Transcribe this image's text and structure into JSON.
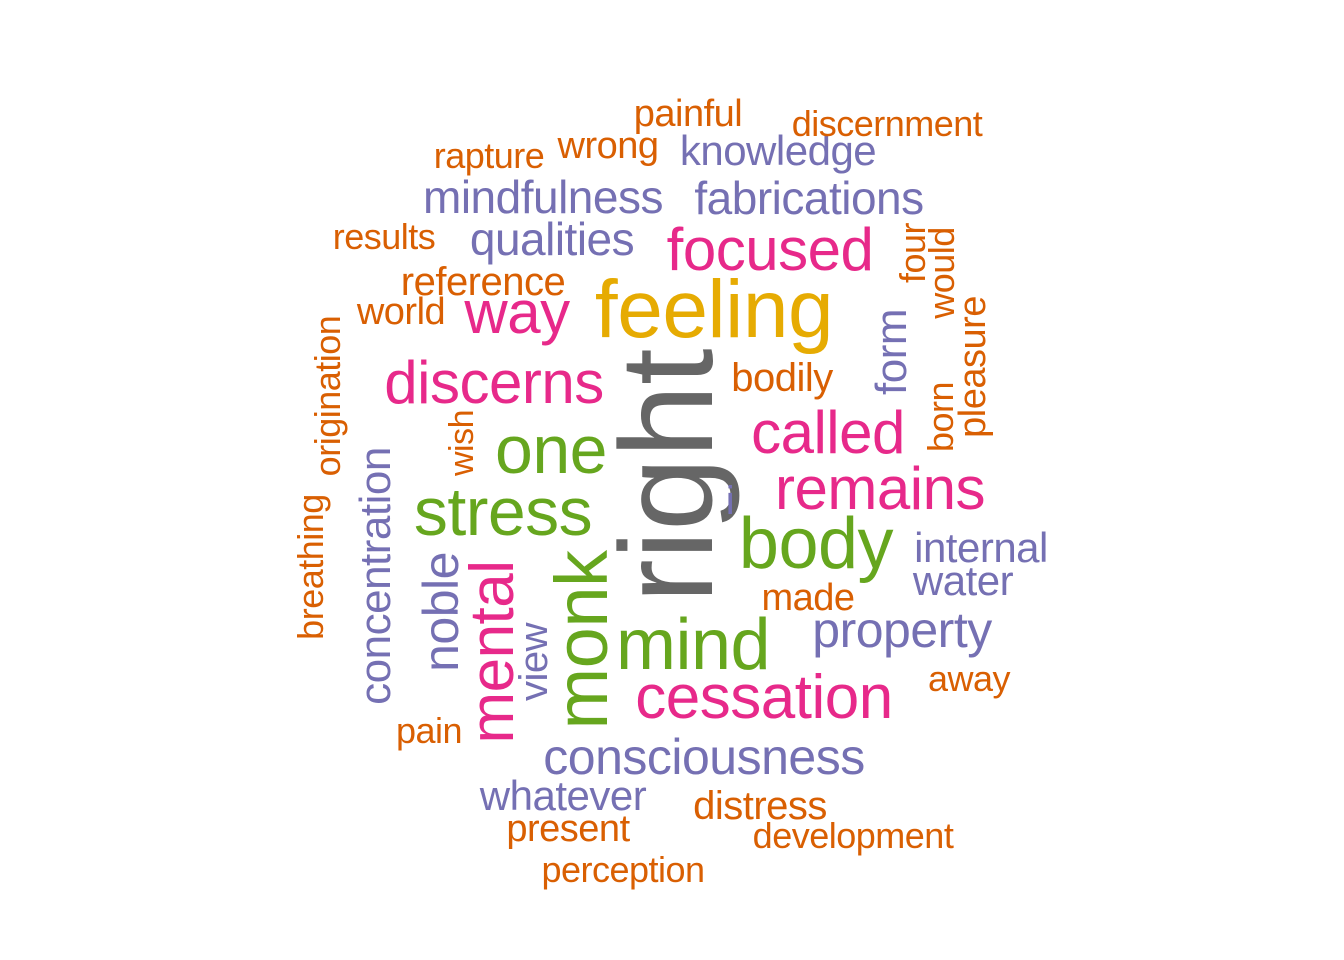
{
  "colors": {
    "orange": "#d95f02",
    "purple": "#7570b3",
    "pink": "#e7298a",
    "green": "#66a61e",
    "gold": "#e6ab02",
    "gray": "#666666"
  },
  "words": [
    {
      "text": "right",
      "color": "gray",
      "vertical": true
    },
    {
      "text": "feeling",
      "color": "gold",
      "vertical": false
    },
    {
      "text": "monk",
      "color": "green",
      "vertical": true
    },
    {
      "text": "mind",
      "color": "green",
      "vertical": false
    },
    {
      "text": "body",
      "color": "green",
      "vertical": false
    },
    {
      "text": "stress",
      "color": "green",
      "vertical": false
    },
    {
      "text": "one",
      "color": "green",
      "vertical": false
    },
    {
      "text": "mental",
      "color": "pink",
      "vertical": true
    },
    {
      "text": "cessation",
      "color": "pink",
      "vertical": false
    },
    {
      "text": "remains",
      "color": "pink",
      "vertical": false
    },
    {
      "text": "called",
      "color": "pink",
      "vertical": false
    },
    {
      "text": "discerns",
      "color": "pink",
      "vertical": false
    },
    {
      "text": "focused",
      "color": "pink",
      "vertical": false
    },
    {
      "text": "way",
      "color": "pink",
      "vertical": false
    },
    {
      "text": "consciousness",
      "color": "purple",
      "vertical": false
    },
    {
      "text": "property",
      "color": "purple",
      "vertical": false
    },
    {
      "text": "noble",
      "color": "purple",
      "vertical": true
    },
    {
      "text": "concentration",
      "color": "purple",
      "vertical": true
    },
    {
      "text": "mindfulness",
      "color": "purple",
      "vertical": false
    },
    {
      "text": "fabrications",
      "color": "purple",
      "vertical": false
    },
    {
      "text": "qualities",
      "color": "purple",
      "vertical": false
    },
    {
      "text": "knowledge",
      "color": "purple",
      "vertical": false
    },
    {
      "text": "internal",
      "color": "purple",
      "vertical": false
    },
    {
      "text": "water",
      "color": "purple",
      "vertical": false
    },
    {
      "text": "whatever",
      "color": "purple",
      "vertical": false
    },
    {
      "text": "view",
      "color": "purple",
      "vertical": true
    },
    {
      "text": "form",
      "color": "purple",
      "vertical": true
    },
    {
      "text": "i",
      "color": "purple",
      "vertical": false
    },
    {
      "text": "painful",
      "color": "orange",
      "vertical": false
    },
    {
      "text": "discernment",
      "color": "orange",
      "vertical": false
    },
    {
      "text": "wrong",
      "color": "orange",
      "vertical": false
    },
    {
      "text": "rapture",
      "color": "orange",
      "vertical": false
    },
    {
      "text": "results",
      "color": "orange",
      "vertical": false
    },
    {
      "text": "reference",
      "color": "orange",
      "vertical": false
    },
    {
      "text": "world",
      "color": "orange",
      "vertical": false
    },
    {
      "text": "bodily",
      "color": "orange",
      "vertical": false
    },
    {
      "text": "made",
      "color": "orange",
      "vertical": false
    },
    {
      "text": "away",
      "color": "orange",
      "vertical": false
    },
    {
      "text": "pain",
      "color": "orange",
      "vertical": false
    },
    {
      "text": "distress",
      "color": "orange",
      "vertical": false
    },
    {
      "text": "present",
      "color": "orange",
      "vertical": false
    },
    {
      "text": "development",
      "color": "orange",
      "vertical": false
    },
    {
      "text": "perception",
      "color": "orange",
      "vertical": false
    },
    {
      "text": "four",
      "color": "orange",
      "vertical": true
    },
    {
      "text": "would",
      "color": "orange",
      "vertical": true
    },
    {
      "text": "pleasure",
      "color": "orange",
      "vertical": true
    },
    {
      "text": "born",
      "color": "orange",
      "vertical": true
    },
    {
      "text": "wish",
      "color": "orange",
      "vertical": true
    },
    {
      "text": "origination",
      "color": "orange",
      "vertical": true
    },
    {
      "text": "breathing",
      "color": "orange",
      "vertical": true
    }
  ]
}
